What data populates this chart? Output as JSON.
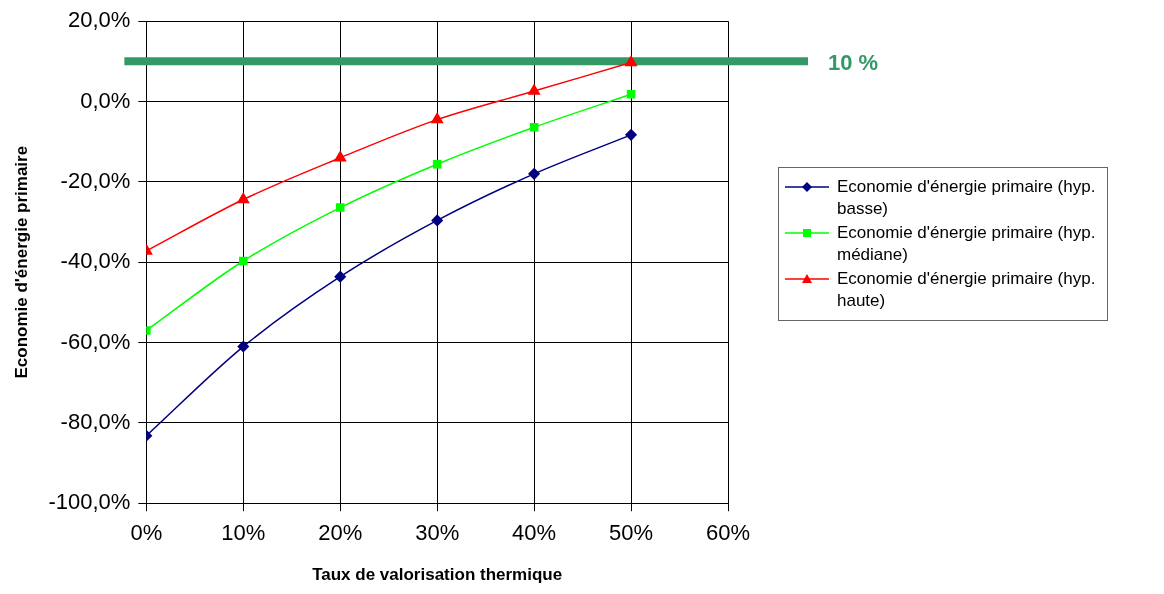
{
  "chart_data": {
    "type": "line",
    "xlabel": "Taux de valorisation thermique",
    "ylabel": "Economie d'énergie primaire",
    "x": [
      0,
      10,
      20,
      30,
      40,
      50
    ],
    "series": [
      {
        "name": "Economie d'énergie primaire (hyp. basse)",
        "color": "#000080",
        "marker": "diamond",
        "values": [
          -83.2,
          -61,
          -43.6,
          -29.6,
          -18,
          -8.3
        ]
      },
      {
        "name": "Economie d'énergie primaire (hyp. médiane)",
        "color": "#00ff00",
        "marker": "square",
        "values": [
          -57,
          -39.7,
          -26.4,
          -15.6,
          -6.4,
          1.8
        ]
      },
      {
        "name": "Economie d'énergie primaire (hyp. haute)",
        "color": "#ff0000",
        "marker": "triangle",
        "values": [
          -37.2,
          -24.4,
          -14,
          -4.5,
          2.6,
          9.7
        ]
      }
    ],
    "xlim": [
      0,
      60
    ],
    "xticks": [
      {
        "value": 0,
        "label": "0%"
      },
      {
        "value": 10,
        "label": "10%"
      },
      {
        "value": 20,
        "label": "20%"
      },
      {
        "value": 30,
        "label": "30%"
      },
      {
        "value": 40,
        "label": "40%"
      },
      {
        "value": 50,
        "label": "50%"
      },
      {
        "value": 60,
        "label": "60%"
      }
    ],
    "ylim": [
      -100,
      20
    ],
    "yticks": [
      {
        "value": -100,
        "label": "-100,0%"
      },
      {
        "value": -80,
        "label": "-80,0%"
      },
      {
        "value": -60,
        "label": "-60,0%"
      },
      {
        "value": -40,
        "label": "-40,0%"
      },
      {
        "value": -20,
        "label": "-20,0%"
      },
      {
        "value": 0,
        "label": "0,0%"
      },
      {
        "value": 20,
        "label": "20,0%"
      }
    ],
    "ref_lines": [
      {
        "axis": "y",
        "value": 10,
        "label": "10 %",
        "color": "#339966"
      }
    ],
    "grid": true,
    "legend": "right",
    "line_style": "solid"
  }
}
